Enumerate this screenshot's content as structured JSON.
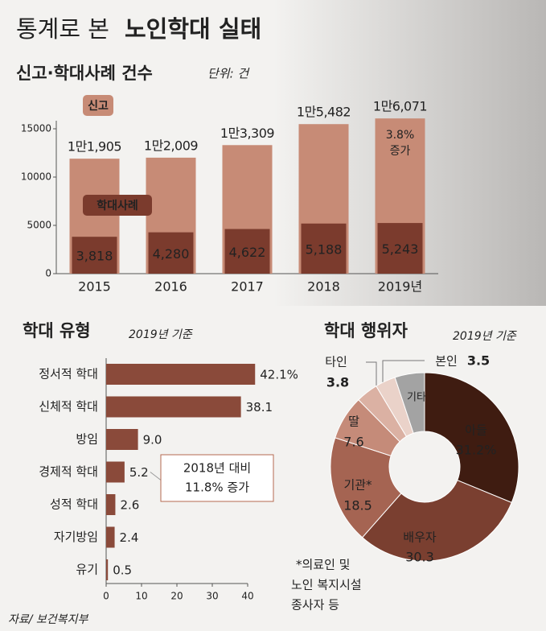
{
  "header": {
    "title_prefix": "통계로 본",
    "title_main": "노인학대 실태"
  },
  "chart_data": [
    {
      "type": "bar",
      "title": "신고·학대사례 건수",
      "unit": "단위: 건",
      "categories": [
        "2015",
        "2016",
        "2017",
        "2018",
        "2019년"
      ],
      "series": [
        {
          "name": "신고",
          "color": "#c78b76",
          "values": [
            11905,
            12009,
            13309,
            15482,
            16071
          ],
          "value_labels": [
            "1만1,905",
            "1만2,009",
            "1만3,309",
            "1만5,482",
            "1만6,071"
          ]
        },
        {
          "name": "학대사례",
          "color": "#7b3b2d",
          "values": [
            3818,
            4280,
            4622,
            5188,
            5243
          ],
          "value_labels": [
            "3,818",
            "4,280",
            "4,622",
            "5,188",
            "5,243"
          ]
        }
      ],
      "annotation": [
        "3.8%",
        "증가"
      ],
      "ylim": [
        0,
        17500
      ],
      "yticks": [
        0,
        5000,
        10000,
        15000
      ]
    },
    {
      "type": "hbar",
      "title": "학대 유형",
      "subtitle": "2019년 기준",
      "categories": [
        "정서적 학대",
        "신체적 학대",
        "방임",
        "경제적 학대",
        "성적 학대",
        "자기방임",
        "유기"
      ],
      "values": [
        42.1,
        38.1,
        9.0,
        5.2,
        2.6,
        2.4,
        0.5
      ],
      "value_labels": [
        "42.1%",
        "38.1",
        "9.0",
        "5.2",
        "2.6",
        "2.4",
        "0.5"
      ],
      "color": "#8a4a3a",
      "annotation": [
        "2018년 대비",
        "11.8% 증가"
      ],
      "xlim": [
        0,
        45
      ],
      "xticks": [
        0,
        10,
        20,
        30,
        40
      ]
    },
    {
      "type": "donut",
      "title": "학대 행위자",
      "subtitle": "2019년 기준",
      "categories": [
        "아들",
        "배우자",
        "기관*",
        "딸",
        "타인",
        "본인",
        "기타"
      ],
      "values": [
        31.2,
        30.3,
        18.5,
        7.6,
        3.8,
        3.5,
        5.1
      ],
      "value_labels": [
        "31.2%",
        "30.3",
        "18.5",
        "7.6",
        "3.8",
        "3.5",
        null
      ],
      "colors": [
        "#3f1c11",
        "#7a3f30",
        "#a56452",
        "#c58b79",
        "#dbb1a3",
        "#ead2c9",
        "#a3a3a3"
      ],
      "footnote": [
        "*의료인 및",
        "노인 복지시설",
        "종사자 등"
      ]
    }
  ],
  "source": "자료/ 보건복지부"
}
